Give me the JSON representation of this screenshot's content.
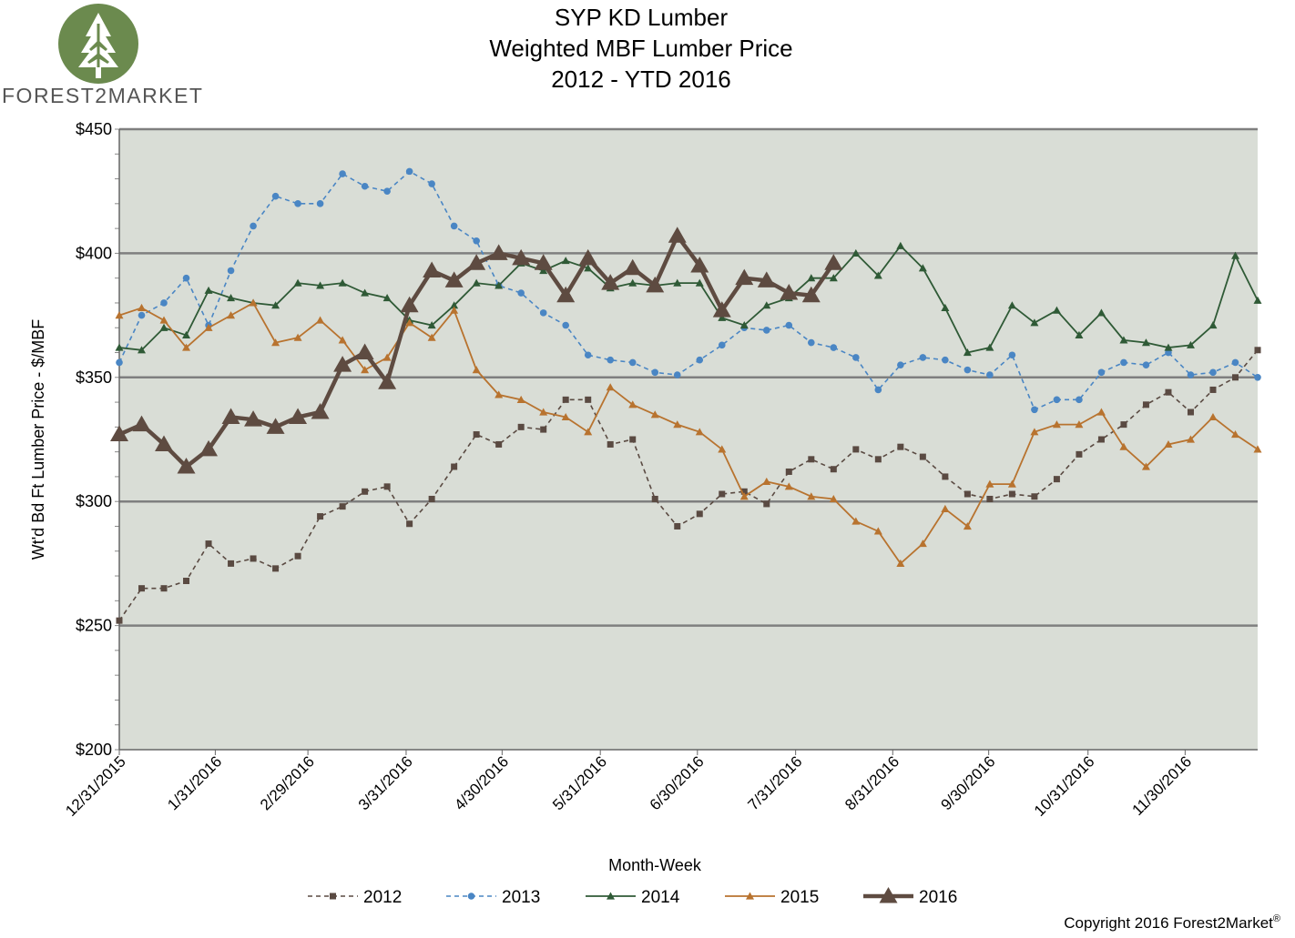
{
  "logo": {
    "text": "FOREST2MARKET"
  },
  "copyright": {
    "text": "Copyright 2016 Forest2Market",
    "mark": "®"
  },
  "chart_data": {
    "type": "line",
    "title": [
      "SYP KD Lumber",
      "Weighted MBF Lumber Price",
      "2012 - YTD 2016"
    ],
    "xlabel": "Month-Week",
    "ylabel": "Wt'd Bd Ft Lumber  Price - $/MBF",
    "ylim": [
      200,
      450
    ],
    "y_ticks": [
      200,
      250,
      300,
      350,
      400,
      450
    ],
    "y_tick_labels": [
      "$200",
      "$250",
      "$300",
      "$350",
      "$400",
      "$450"
    ],
    "x_tick_labels": [
      "12/31/2015",
      "1/31/2016",
      "2/29/2016",
      "3/31/2016",
      "4/30/2016",
      "5/31/2016",
      "6/30/2016",
      "7/31/2016",
      "8/31/2016",
      "9/30/2016",
      "10/31/2016",
      "11/30/2016"
    ],
    "x_tick_index": [
      0,
      4.3,
      8.45,
      12.85,
      17.15,
      21.55,
      25.9,
      30.3,
      34.65,
      38.95,
      43.4,
      47.75
    ],
    "num_points": 52,
    "legend_position": "bottom",
    "series": [
      {
        "name": "2012",
        "color": "#5a4a42",
        "style": "dashed",
        "marker": "square",
        "values": [
          252,
          265,
          265,
          268,
          283,
          275,
          277,
          273,
          278,
          294,
          298,
          304,
          306,
          291,
          301,
          314,
          327,
          323,
          330,
          329,
          341,
          341,
          323,
          325,
          301,
          290,
          295,
          303,
          304,
          299,
          312,
          317,
          313,
          321,
          317,
          322,
          318,
          310,
          303,
          301,
          303,
          302,
          309,
          319,
          325,
          331,
          339,
          344,
          336,
          345,
          350,
          361
        ]
      },
      {
        "name": "2013",
        "color": "#4a86c4",
        "style": "dashed",
        "marker": "circle",
        "values": [
          356,
          375,
          380,
          390,
          371,
          393,
          411,
          423,
          420,
          420,
          432,
          427,
          425,
          433,
          428,
          411,
          405,
          387,
          384,
          376,
          371,
          359,
          357,
          356,
          352,
          351,
          357,
          363,
          370,
          369,
          371,
          364,
          362,
          358,
          345,
          355,
          358,
          357,
          353,
          351,
          359,
          337,
          341,
          341,
          352,
          356,
          355,
          360,
          351,
          352,
          356,
          350
        ]
      },
      {
        "name": "2014",
        "color": "#2f5a36",
        "style": "solid",
        "marker": "triangle",
        "values": [
          362,
          361,
          370,
          367,
          385,
          382,
          380,
          379,
          388,
          387,
          388,
          384,
          382,
          373,
          371,
          379,
          388,
          387,
          396,
          393,
          397,
          394,
          386,
          388,
          387,
          388,
          388,
          374,
          371,
          379,
          382,
          390,
          390,
          400,
          391,
          403,
          394,
          378,
          360,
          362,
          379,
          372,
          377,
          367,
          376,
          365,
          364,
          362,
          363,
          371,
          399,
          381
        ]
      },
      {
        "name": "2015",
        "color": "#b8732f",
        "style": "solid",
        "marker": "triangle",
        "values": [
          375,
          378,
          373,
          362,
          370,
          375,
          380,
          364,
          366,
          373,
          365,
          353,
          358,
          372,
          366,
          377,
          353,
          343,
          341,
          336,
          334,
          328,
          346,
          339,
          335,
          331,
          328,
          321,
          302,
          308,
          306,
          302,
          301,
          292,
          288,
          275,
          283,
          297,
          290,
          307,
          307,
          328,
          331,
          331,
          336,
          322,
          314,
          323,
          325,
          334,
          327,
          321
        ]
      },
      {
        "name": "2016",
        "color": "#5e4b41",
        "style": "solid-bold",
        "marker": "triangle-large",
        "values": [
          327,
          331,
          323,
          314,
          321,
          334,
          333,
          330,
          334,
          336,
          355,
          360,
          348,
          379,
          393,
          389,
          396,
          400,
          398,
          396,
          383,
          398,
          388,
          394,
          387,
          407,
          395,
          377,
          390,
          389,
          384,
          383,
          396
        ]
      }
    ]
  }
}
